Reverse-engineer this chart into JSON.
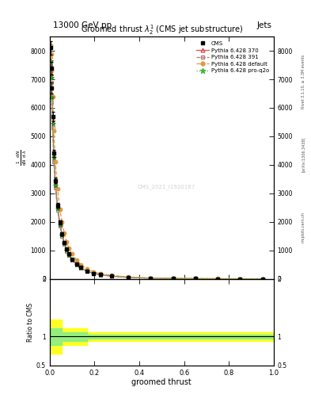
{
  "title": "13000 GeV pp",
  "title_right": "Jets",
  "plot_title": "Groomed thrust $\\lambda\\_2^1$ (CMS jet substructure)",
  "xlabel": "groomed thrust",
  "ylabel_ratio": "Ratio to CMS",
  "watermark": "CMS_2021_I1920187",
  "rivet_label": "Rivet 3.1.10, ≥ 3.3M events",
  "arxiv_label": "[arXiv:1306.3438]",
  "mcplots_label": "mcplots.cern.ch",
  "xlim": [
    0.0,
    1.0
  ],
  "ylim_main": [
    0,
    8500
  ],
  "ylim_ratio": [
    0.5,
    2.0
  ],
  "cms_x": [
    0.003,
    0.006,
    0.009,
    0.013,
    0.018,
    0.025,
    0.035,
    0.045,
    0.055,
    0.065,
    0.075,
    0.085,
    0.1,
    0.12,
    0.14,
    0.165,
    0.195,
    0.225,
    0.275,
    0.35,
    0.45,
    0.55,
    0.65,
    0.75,
    0.85,
    0.95
  ],
  "cms_y": [
    8100,
    7400,
    6700,
    5700,
    4400,
    3450,
    2580,
    1980,
    1580,
    1280,
    1040,
    870,
    695,
    525,
    396,
    278,
    198,
    148,
    98,
    53,
    24,
    14,
    7.5,
    3.8,
    1.9,
    0.95
  ],
  "py370_x": [
    0.003,
    0.006,
    0.009,
    0.013,
    0.018,
    0.025,
    0.035,
    0.045,
    0.055,
    0.065,
    0.075,
    0.085,
    0.1,
    0.12,
    0.14,
    0.165,
    0.195,
    0.225,
    0.275,
    0.35,
    0.45,
    0.55,
    0.65,
    0.75,
    0.85,
    0.95
  ],
  "py370_y": [
    7800,
    7200,
    6500,
    5600,
    4350,
    3380,
    2540,
    1950,
    1560,
    1260,
    1010,
    850,
    682,
    514,
    386,
    272,
    195,
    146,
    97,
    52,
    23.5,
    13.5,
    7.2,
    3.5,
    1.75,
    0.88
  ],
  "py391_x": [
    0.003,
    0.006,
    0.009,
    0.013,
    0.018,
    0.025,
    0.035,
    0.045,
    0.055,
    0.065,
    0.075,
    0.085,
    0.1,
    0.12,
    0.14,
    0.165,
    0.195,
    0.225,
    0.275,
    0.35,
    0.45,
    0.55,
    0.65,
    0.75,
    0.85,
    0.95
  ],
  "py391_y": [
    7500,
    6900,
    6200,
    5300,
    4100,
    3200,
    2420,
    1860,
    1490,
    1210,
    972,
    818,
    658,
    496,
    372,
    262,
    188,
    140,
    93,
    50,
    22.5,
    12.8,
    6.8,
    3.2,
    1.6,
    0.8
  ],
  "pydef_x": [
    0.003,
    0.006,
    0.009,
    0.013,
    0.018,
    0.025,
    0.035,
    0.045,
    0.055,
    0.065,
    0.075,
    0.085,
    0.1,
    0.12,
    0.14,
    0.165,
    0.195,
    0.225,
    0.275,
    0.35,
    0.45,
    0.55,
    0.65,
    0.75,
    0.85,
    0.95
  ],
  "pydef_y": [
    8200,
    7900,
    7300,
    6400,
    5200,
    4100,
    3150,
    2450,
    1980,
    1600,
    1290,
    1080,
    868,
    656,
    494,
    348,
    250,
    187,
    124,
    67,
    30,
    17,
    9.1,
    4.6,
    2.3,
    1.15
  ],
  "pyq2o_x": [
    0.003,
    0.006,
    0.009,
    0.013,
    0.018,
    0.025,
    0.035,
    0.045,
    0.055,
    0.065,
    0.075,
    0.085,
    0.1,
    0.12,
    0.14,
    0.165,
    0.195,
    0.225,
    0.275,
    0.35,
    0.45,
    0.55,
    0.65,
    0.75,
    0.85,
    0.95
  ],
  "pyq2o_y": [
    7650,
    7050,
    6350,
    5450,
    4250,
    3280,
    2470,
    1890,
    1520,
    1230,
    988,
    832,
    668,
    504,
    378,
    267,
    192,
    143,
    95,
    51,
    23.2,
    13.2,
    7.1,
    3.3,
    1.65,
    0.83
  ],
  "color_370": "#e05050",
  "color_391": "#b08080",
  "color_def": "#e09840",
  "color_q2o": "#40b840",
  "color_cms": "#000000",
  "yticks_main": [
    0,
    1000,
    2000,
    3000,
    4000,
    5000,
    6000,
    7000,
    8000
  ],
  "ytick_labels_main": [
    "0",
    "1000",
    "2000",
    "3000",
    "4000",
    "5000",
    "6000",
    "7000",
    "8000"
  ],
  "yticks_ratio": [
    0.5,
    1.0,
    2.0
  ],
  "ytick_labels_ratio": [
    "0.5",
    "1",
    "2"
  ]
}
